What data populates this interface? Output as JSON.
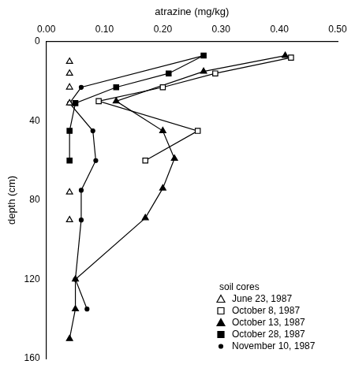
{
  "chart_data": {
    "type": "line",
    "x_label": "atrazine (mg/kg)",
    "y_label": "depth (cm)",
    "legend_title": "soil cores",
    "legend": "lower right",
    "grid": false,
    "xlim": [
      0,
      0.5
    ],
    "xticks": [
      {
        "value": 0,
        "label": "0.00"
      },
      {
        "value": 0.1,
        "label": "0.10"
      },
      {
        "value": 0.2,
        "label": "0.20"
      },
      {
        "value": 0.3,
        "label": "0.30"
      },
      {
        "value": 0.4,
        "label": "0.40"
      },
      {
        "value": 0.5,
        "label": "0.50"
      }
    ],
    "ylim": [
      0,
      160
    ],
    "yticks": [
      0,
      40,
      80,
      120,
      160
    ],
    "series": [
      {
        "name": "June 23, 1987",
        "color": "#000000",
        "marker": "open_triangle",
        "line_style": "none",
        "x": [
          0.04,
          0.04,
          0.04,
          0.04,
          0.04,
          0.04
        ],
        "values": [
          10,
          16,
          23,
          31,
          76,
          90
        ]
      },
      {
        "name": "October 8, 1987",
        "color": "#000000",
        "marker": "open_square",
        "line_style": "solid",
        "x": [
          0.42,
          0.29,
          0.2,
          0.09,
          0.26,
          0.17
        ],
        "values": [
          8,
          16,
          23,
          30,
          45,
          60
        ]
      },
      {
        "name": "October 13, 1987",
        "color": "#000000",
        "marker": "triangle",
        "line_style": "solid",
        "x": [
          0.41,
          0.27,
          0.12,
          0.2,
          0.22,
          0.2,
          0.17,
          0.05,
          0.05,
          0.04
        ],
        "values": [
          7,
          15,
          30,
          45,
          59,
          74,
          89,
          120,
          135,
          150
        ]
      },
      {
        "name": "October 28, 1987",
        "color": "#000000",
        "marker": "square",
        "line_style": "solid",
        "x": [
          0.27,
          0.21,
          0.12,
          0.05,
          0.04,
          0.04
        ],
        "values": [
          7,
          16,
          23,
          31,
          45,
          60
        ]
      },
      {
        "name": "November 10, 1987",
        "color": "#000000",
        "marker": "circle",
        "line_style": "solid",
        "x": [
          0.27,
          0.06,
          0.04,
          0.08,
          0.085,
          0.06,
          0.06,
          0.05,
          0.07
        ],
        "values": [
          7,
          23,
          31,
          45,
          60,
          75,
          90,
          120,
          135
        ]
      }
    ]
  }
}
